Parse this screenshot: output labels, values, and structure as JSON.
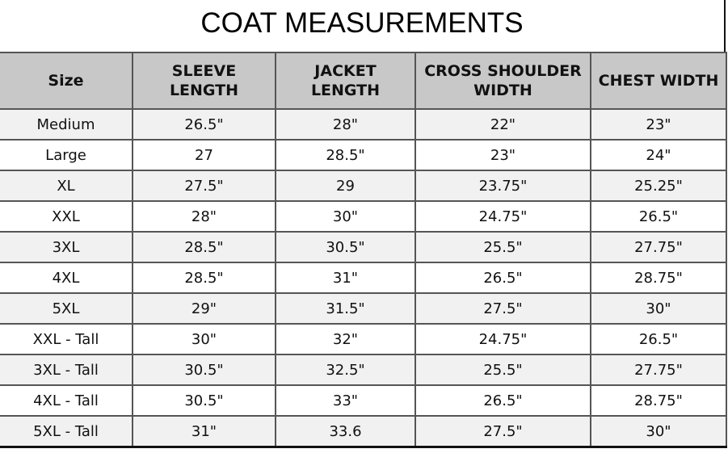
{
  "title": "COAT MEASUREMENTS",
  "table": {
    "header": [
      "Size",
      "SLEEVE LENGTH",
      "JACKET LENGTH",
      "CROSS SHOULDER WIDTH",
      "CHEST WIDTH"
    ],
    "rows": [
      [
        "Medium",
        "26.5\"",
        "28\"",
        "22\"",
        "23\""
      ],
      [
        "Large",
        "27",
        "28.5\"",
        "23\"",
        "24\""
      ],
      [
        "XL",
        "27.5\"",
        "29",
        "23.75\"",
        "25.25\""
      ],
      [
        "XXL",
        "28\"",
        "30\"",
        "24.75\"",
        "26.5\""
      ],
      [
        "3XL",
        "28.5\"",
        "30.5\"",
        "25.5\"",
        "27.75\""
      ],
      [
        "4XL",
        "28.5\"",
        "31\"",
        "26.5\"",
        "28.75\""
      ],
      [
        "5XL",
        "29\"",
        "31.5\"",
        "27.5\"",
        "30\""
      ],
      [
        "XXL - Tall",
        "30\"",
        "32\"",
        "24.75\"",
        "26.5\""
      ],
      [
        "3XL - Tall",
        "30.5\"",
        "32.5\"",
        "25.5\"",
        "27.75\""
      ],
      [
        "4XL - Tall",
        "30.5\"",
        "33\"",
        "26.5\"",
        "28.75\""
      ],
      [
        "5XL - Tall",
        "31\"",
        "33.6",
        "27.5\"",
        "30\""
      ]
    ]
  }
}
